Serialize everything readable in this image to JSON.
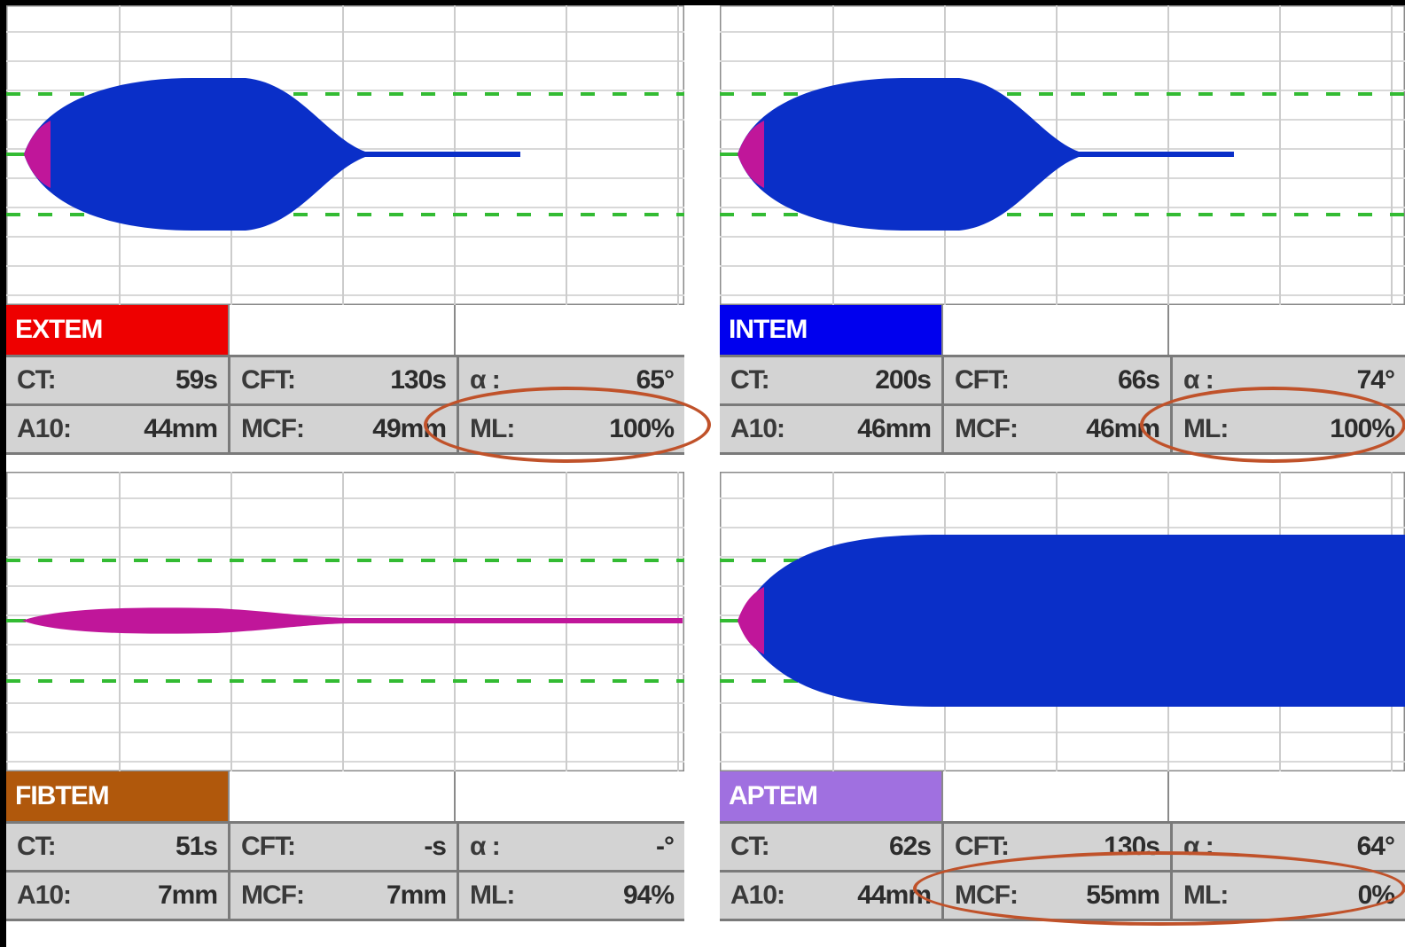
{
  "panels": [
    {
      "name": "EXTEM",
      "color": "#ee0000",
      "trace": "lysis",
      "params": [
        {
          "key": "CT:",
          "value": "59s"
        },
        {
          "key": "CFT:",
          "value": "130s"
        },
        {
          "key": "α :",
          "value": "65°"
        },
        {
          "key": "A10:",
          "value": "44mm"
        },
        {
          "key": "MCF:",
          "value": "49mm"
        },
        {
          "key": "ML:",
          "value": "100%"
        }
      ]
    },
    {
      "name": "INTEM",
      "color": "#0000ee",
      "trace": "lysis",
      "params": [
        {
          "key": "CT:",
          "value": "200s"
        },
        {
          "key": "CFT:",
          "value": "66s"
        },
        {
          "key": "α :",
          "value": "74°"
        },
        {
          "key": "A10:",
          "value": "46mm"
        },
        {
          "key": "MCF:",
          "value": "46mm"
        },
        {
          "key": "ML:",
          "value": "100%"
        }
      ]
    },
    {
      "name": "FIBTEM",
      "color": "#b0580c",
      "trace": "flat",
      "params": [
        {
          "key": "CT:",
          "value": "51s"
        },
        {
          "key": "CFT:",
          "value": "-s"
        },
        {
          "key": "α :",
          "value": "-°"
        },
        {
          "key": "A10:",
          "value": "7mm"
        },
        {
          "key": "MCF:",
          "value": "7mm"
        },
        {
          "key": "ML:",
          "value": "94%"
        }
      ]
    },
    {
      "name": "APTEM",
      "color": "#a070e0",
      "trace": "stable",
      "params": [
        {
          "key": "CT:",
          "value": "62s"
        },
        {
          "key": "CFT:",
          "value": "130s"
        },
        {
          "key": "α :",
          "value": "64°"
        },
        {
          "key": "A10:",
          "value": "44mm"
        },
        {
          "key": "MCF:",
          "value": "55mm"
        },
        {
          "key": "ML:",
          "value": "0%"
        }
      ]
    }
  ],
  "colors": {
    "trace_fill": "#0a2fc8",
    "trace_onset": "#c0169a",
    "reference_line": "#33bb33",
    "highlight": "#c0522a"
  }
}
